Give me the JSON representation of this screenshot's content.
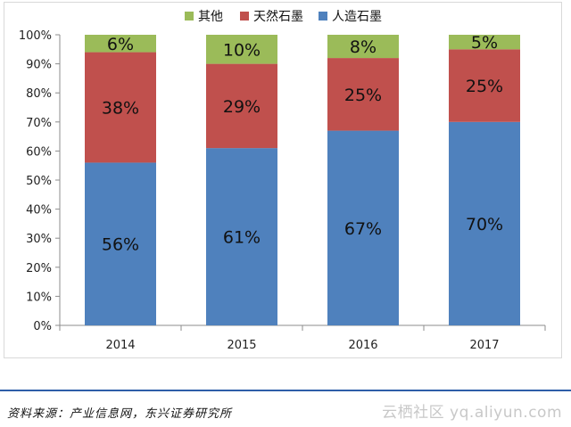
{
  "chart_data": {
    "type": "bar",
    "stacked": true,
    "percent_stacked": true,
    "categories": [
      "2014",
      "2015",
      "2016",
      "2017"
    ],
    "series": [
      {
        "name": "人造石墨",
        "values": [
          56,
          61,
          67,
          70
        ],
        "labels": [
          "56%",
          "61%",
          "67%",
          "70%"
        ],
        "color": "#4f81bd"
      },
      {
        "name": "天然石墨",
        "values": [
          38,
          29,
          25,
          25
        ],
        "labels": [
          "38%",
          "29%",
          "25%",
          "25%"
        ],
        "color": "#c0504d"
      },
      {
        "name": "其他",
        "values": [
          6,
          10,
          8,
          5
        ],
        "labels": [
          "6%",
          "10%",
          "8%",
          "5%"
        ],
        "color": "#9bbb59"
      }
    ],
    "legend_order": [
      "其他",
      "天然石墨",
      "人造石墨"
    ],
    "legend_position": "top-center",
    "y_ticks": [
      "0%",
      "10%",
      "20%",
      "30%",
      "40%",
      "50%",
      "60%",
      "70%",
      "80%",
      "90%",
      "100%"
    ],
    "ylim": [
      0,
      100
    ],
    "grid": false,
    "title": "",
    "xlabel": "",
    "ylabel": ""
  },
  "source_text": "资料来源：产业信息网，东兴证券研究所",
  "watermark_text": "云栖社区 yq.aliyun.com"
}
